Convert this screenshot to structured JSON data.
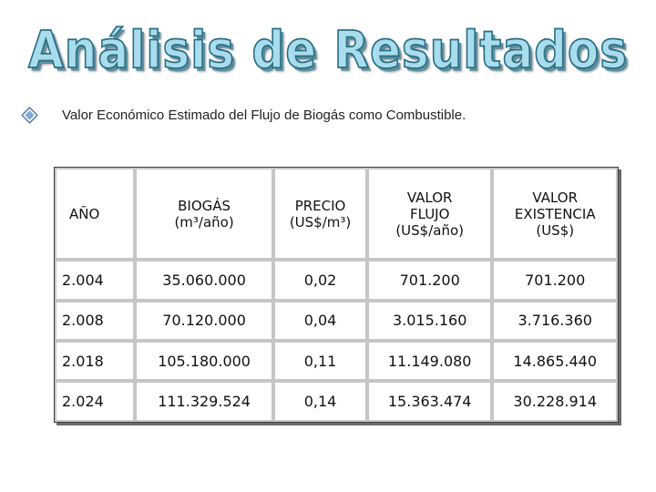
{
  "slide": {
    "title": "Análisis de Resultados",
    "subtitle": "Valor Económico Estimado del Flujo de Biogás como  Combustible.",
    "bullet_icon": "diamond-bullet-icon"
  },
  "table": {
    "headers": [
      "AÑO",
      "BIOGÁS (m³/año)",
      "PRECIO (US$/m³)",
      "VALOR FLUJO (US$/año)",
      "VALOR EXISTENCIA (US$)"
    ],
    "header_lines": [
      [
        "AÑO"
      ],
      [
        "BIOGÁS",
        "(m³/año)"
      ],
      [
        "PRECIO",
        "(US$/m³)"
      ],
      [
        "VALOR",
        "FLUJO",
        "(US$/año)"
      ],
      [
        "VALOR",
        "EXISTENCIA",
        "(US$)"
      ]
    ],
    "rows": [
      [
        "2.004",
        "35.060.000",
        "0,02",
        "701.200",
        "701.200"
      ],
      [
        "2.008",
        "70.120.000",
        "0,04",
        "3.015.160",
        "3.716.360"
      ],
      [
        "2.018",
        "105.180.000",
        "0,11",
        "11.149.080",
        "14.865.440"
      ],
      [
        "2.024",
        "111.329.524",
        "0,14",
        "15.363.474",
        "30.228.914"
      ]
    ]
  }
}
